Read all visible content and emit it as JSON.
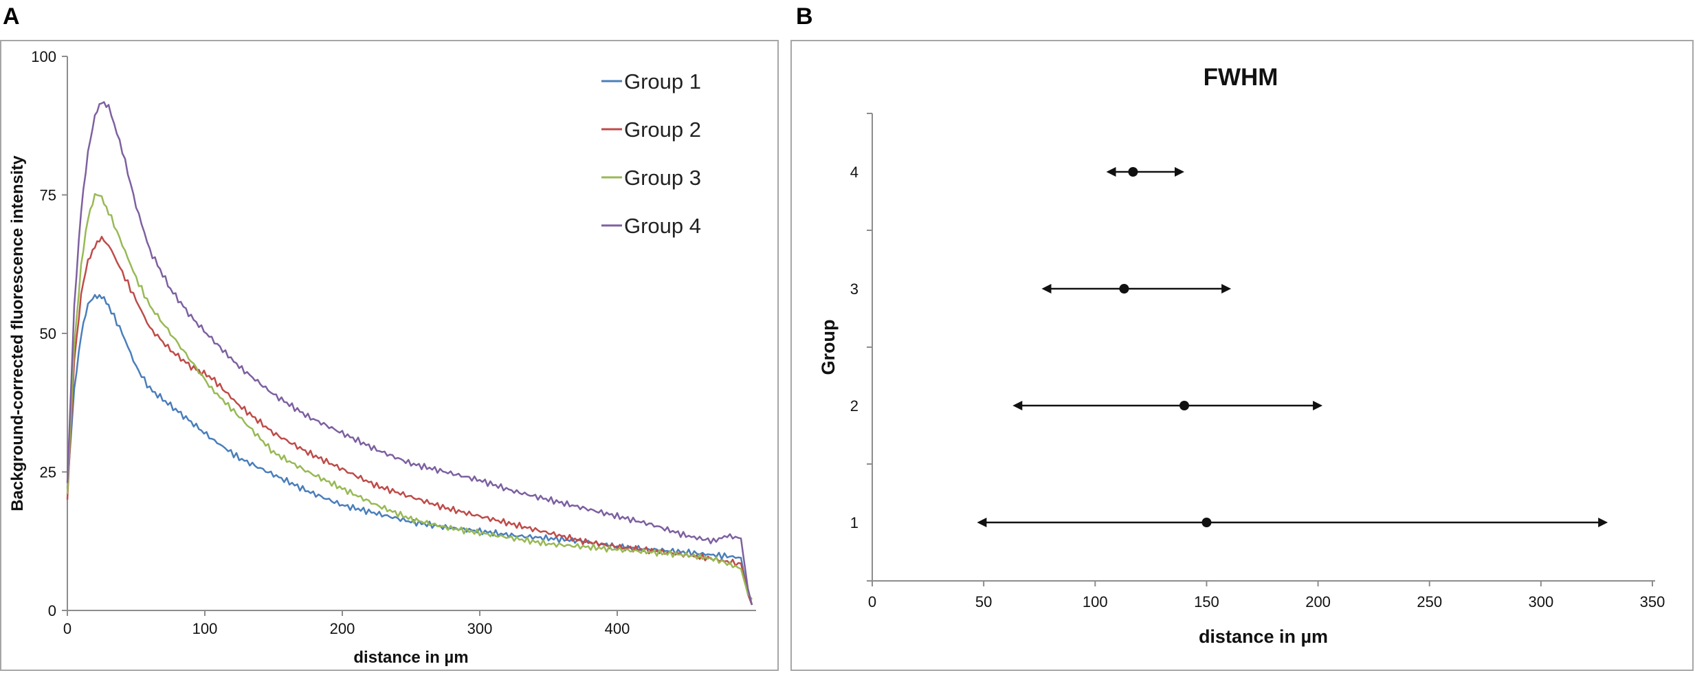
{
  "chart_data": [
    {
      "panel_label": "A",
      "type": "line",
      "title": "",
      "xlabel": "distance in  µm",
      "ylabel": "Background-corrected fluorescence intensity",
      "xlim": [
        0,
        500
      ],
      "ylim": [
        0,
        100
      ],
      "xticks": [
        "0",
        "100",
        "200",
        "300",
        "400"
      ],
      "xtick_values": [
        0,
        100,
        200,
        300,
        400
      ],
      "yticks": [
        "0",
        "25",
        "50",
        "75",
        "100"
      ],
      "ytick_values": [
        0,
        25,
        50,
        75,
        100
      ],
      "grid": false,
      "legend_position": "top-right",
      "series": [
        {
          "name": "Group 1",
          "color": "#4a7ebb",
          "x": [
            0,
            5,
            10,
            15,
            20,
            25,
            30,
            40,
            50,
            60,
            75,
            90,
            105,
            125,
            150,
            175,
            200,
            225,
            250,
            275,
            300,
            325,
            350,
            375,
            400,
            425,
            450,
            470,
            480,
            490,
            495,
            498
          ],
          "y": [
            22,
            40,
            50,
            55,
            57,
            56.5,
            55,
            50,
            44,
            40,
            37,
            34,
            31,
            27.5,
            24.5,
            21.5,
            19,
            17.5,
            16,
            15,
            14.3,
            13.5,
            13,
            12.5,
            11.5,
            11,
            10.5,
            10,
            9.8,
            9.5,
            3,
            1
          ]
        },
        {
          "name": "Group 2",
          "color": "#be4b48",
          "x": [
            0,
            5,
            10,
            15,
            20,
            25,
            30,
            40,
            50,
            60,
            75,
            90,
            105,
            125,
            150,
            175,
            200,
            225,
            250,
            275,
            300,
            325,
            350,
            375,
            400,
            425,
            450,
            470,
            480,
            490,
            495,
            498
          ],
          "y": [
            20,
            45,
            57,
            63,
            66,
            67,
            66,
            61,
            56,
            51,
            47,
            44,
            42,
            37,
            32,
            28.5,
            25.5,
            22.5,
            20.5,
            18.5,
            17,
            15.5,
            14,
            12.5,
            11.5,
            10.8,
            10,
            9.3,
            8.8,
            8.5,
            3,
            1
          ]
        },
        {
          "name": "Group 3",
          "color": "#98b954",
          "x": [
            0,
            5,
            10,
            15,
            20,
            25,
            30,
            40,
            50,
            60,
            75,
            90,
            105,
            125,
            150,
            175,
            200,
            225,
            250,
            275,
            300,
            325,
            350,
            375,
            400,
            425,
            450,
            470,
            480,
            490,
            495,
            498
          ],
          "y": [
            21,
            48,
            62,
            71,
            75,
            74.5,
            72,
            66,
            60,
            55,
            50,
            45,
            40,
            35,
            28.5,
            25,
            22,
            19,
            16.5,
            15,
            14,
            13,
            12,
            11.5,
            11,
            10.5,
            10,
            9.3,
            8.5,
            7.5,
            3,
            2
          ]
        },
        {
          "name": "Group 4",
          "color": "#7d60a0",
          "x": [
            0,
            5,
            10,
            15,
            20,
            25,
            30,
            40,
            50,
            60,
            75,
            90,
            105,
            125,
            150,
            175,
            200,
            225,
            250,
            275,
            300,
            325,
            350,
            375,
            400,
            425,
            450,
            470,
            480,
            490,
            495,
            498
          ],
          "y": [
            23,
            55,
            72,
            83,
            89,
            92,
            91,
            83,
            73,
            65,
            58,
            53,
            49,
            44,
            39,
            35,
            32,
            29,
            26.5,
            25,
            23.5,
            21.5,
            20,
            18.5,
            17,
            15.5,
            13.5,
            12.5,
            13.5,
            13,
            4,
            1
          ]
        }
      ]
    },
    {
      "panel_label": "B",
      "type": "scatter",
      "title": "FWHM",
      "xlabel": "distance in µm",
      "ylabel": "Group",
      "xlim": [
        0,
        350
      ],
      "ylim": [
        0.5,
        4.5
      ],
      "xticks": [
        "0",
        "50",
        "100",
        "150",
        "200",
        "250",
        "300",
        "350"
      ],
      "xtick_values": [
        0,
        50,
        100,
        150,
        200,
        250,
        300,
        350
      ],
      "yticks": [
        "1",
        "2",
        "3",
        "4"
      ],
      "ytick_values": [
        1,
        2,
        3,
        4
      ],
      "grid": false,
      "series": [
        {
          "name": "Group 1",
          "group": 1,
          "center": 150,
          "low": 47,
          "high": 330
        },
        {
          "name": "Group 2",
          "group": 2,
          "center": 140,
          "low": 63,
          "high": 202
        },
        {
          "name": "Group 3",
          "group": 3,
          "center": 113,
          "low": 76,
          "high": 161
        },
        {
          "name": "Group 4",
          "group": 4,
          "center": 117,
          "low": 105,
          "high": 140
        }
      ]
    }
  ]
}
